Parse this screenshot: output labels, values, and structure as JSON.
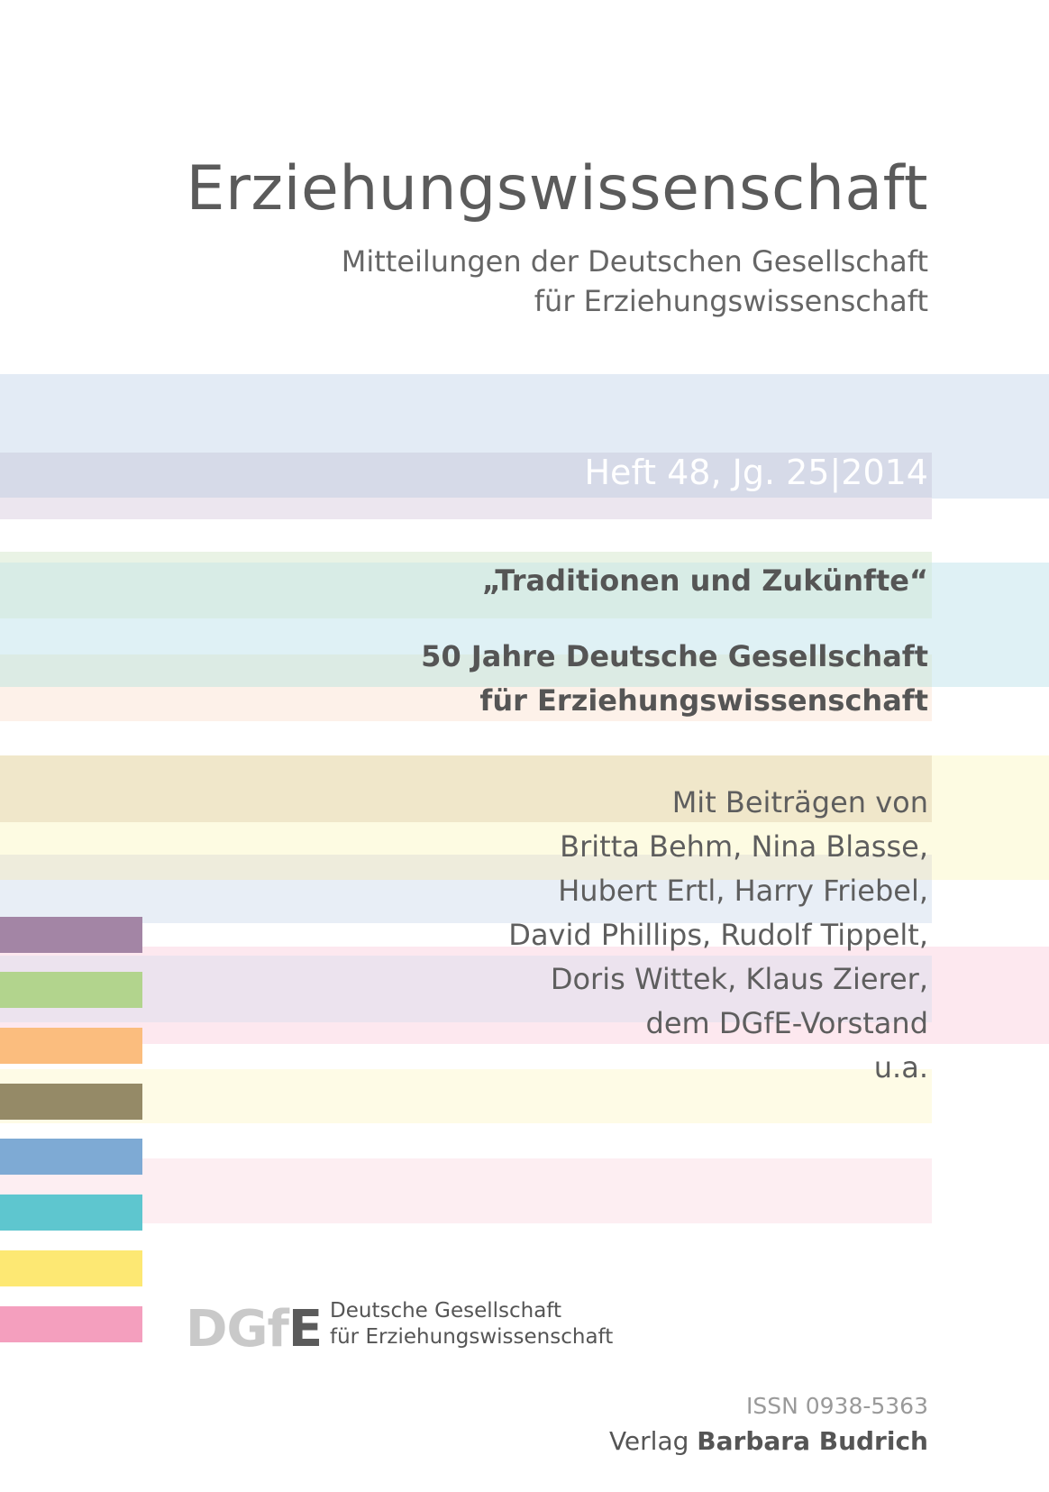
{
  "journal": {
    "title": "Erziehungswissenschaft",
    "subtitle_line1": "Mitteilungen der Deutschen Gesellschaft",
    "subtitle_line2": "für Erziehungswissenschaft"
  },
  "issue": {
    "label": "Heft 48, Jg. 25|2014"
  },
  "theme": {
    "quote": "„Traditionen und Zukünfte“",
    "anniversary_line1": "50 Jahre Deutsche Gesellschaft",
    "anniversary_line2": "für Erziehungswissenschaft"
  },
  "contributors": {
    "lines": [
      "Mit Beiträgen von",
      "Britta Behm, Nina Blasse,",
      "Hubert Ertl, Harry Friebel,",
      "David Phillips, Rudolf Tippelt,",
      "Doris Wittek, Klaus Zierer,",
      "dem DGfE-Vorstand",
      "u.a."
    ]
  },
  "logo": {
    "mark": "DGfE",
    "name_line1": "Deutsche Gesellschaft",
    "name_line2": "für Erziehungswissenschaft"
  },
  "footer": {
    "issn": "ISSN 0938-5363",
    "publisher_prefix": "Verlag",
    "publisher_name": "Barbara Budrich"
  },
  "colors": {
    "swatches": [
      "#a385a5",
      "#b2d48d",
      "#fbbd7e",
      "#958a67",
      "#7eaad4",
      "#5ec6cf",
      "#fde873",
      "#f49fbe"
    ]
  }
}
